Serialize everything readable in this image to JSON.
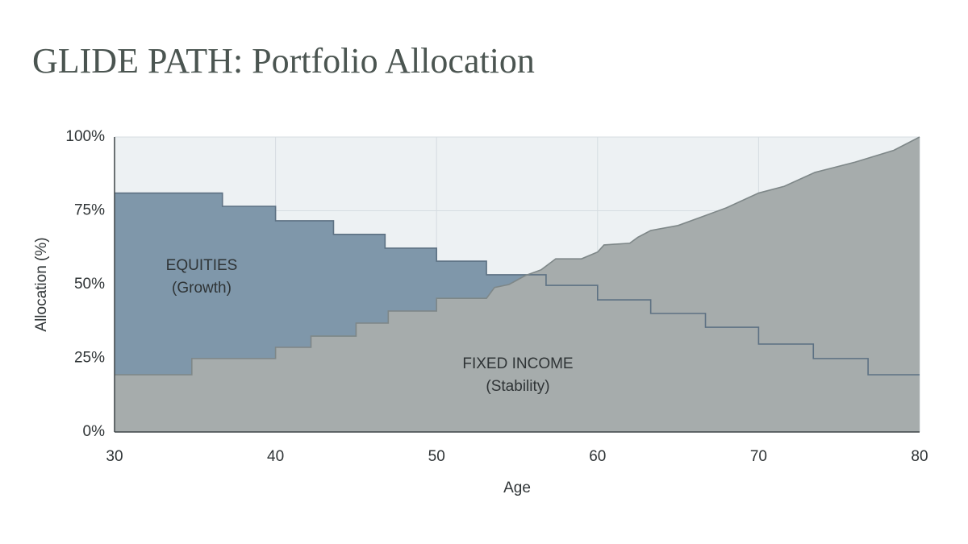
{
  "chart_data": {
    "type": "area",
    "title": "GLIDE PATH: Portfolio Allocation",
    "x_label": "Age",
    "y_label": "Allocation (%)",
    "xlim": [
      30,
      80
    ],
    "ylim": [
      0,
      100
    ],
    "xticks": [
      30,
      40,
      50,
      60,
      70,
      80
    ],
    "yticks": [
      {
        "value": 0,
        "label": "0%"
      },
      {
        "value": 25,
        "label": "25%"
      },
      {
        "value": 50,
        "label": "50%"
      },
      {
        "value": 75,
        "label": "75%"
      },
      {
        "value": 100,
        "label": "100%"
      }
    ],
    "grid": true,
    "series": [
      {
        "name": "EQUITIES",
        "note": "(Growth)",
        "color": "#7f97aa",
        "line_color": "#5d7183",
        "x": [
          30,
          36.7,
          36.7,
          40,
          40,
          43.6,
          43.6,
          46.8,
          46.8,
          50,
          50,
          53.1,
          53.1,
          56.8,
          56.8,
          60,
          60,
          63.3,
          63.3,
          66.7,
          66.7,
          70,
          70,
          73.4,
          73.4,
          76.8,
          76.8,
          80
        ],
        "values": [
          81,
          81,
          76.5,
          76.5,
          71.6,
          71.6,
          67,
          67,
          62.3,
          62.3,
          57.9,
          57.9,
          53.3,
          53.3,
          49.7,
          49.7,
          44.8,
          44.8,
          40.2,
          40.2,
          35.5,
          35.5,
          29.8,
          29.8,
          24.9,
          24.9,
          19.4,
          19.4
        ]
      },
      {
        "name": "FIXED INCOME",
        "note": "(Stability)",
        "color": "#a6acac",
        "line_color": "#7e8788",
        "x": [
          30,
          34.8,
          34.8,
          40,
          40,
          42.2,
          42.2,
          45,
          45,
          47,
          47,
          50,
          50,
          53.1,
          53.6,
          54.5,
          55.5,
          56.5,
          57.4,
          59,
          60,
          60.4,
          62,
          62.5,
          63.3,
          65,
          66.5,
          68,
          70,
          71.6,
          73.5,
          76,
          78.4,
          80
        ],
        "values": [
          19.4,
          19.4,
          24.9,
          24.9,
          28.7,
          28.7,
          32.5,
          32.5,
          36.9,
          36.9,
          41,
          41,
          45.3,
          45.3,
          49,
          50,
          53,
          55,
          58.7,
          58.7,
          61,
          63.4,
          64,
          66,
          68.3,
          70,
          73,
          76,
          81,
          83.3,
          88,
          91.5,
          95.5,
          100
        ]
      }
    ]
  }
}
